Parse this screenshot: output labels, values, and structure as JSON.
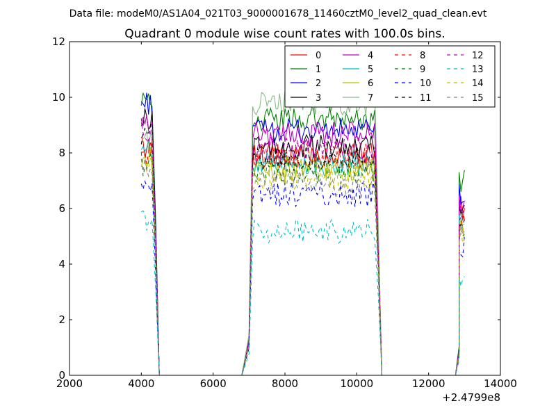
{
  "chart_data": {
    "type": "line",
    "suptitle": "Data file: modeM0/AS1A04_021T03_9000001678_11460cztM0_level2_quad_clean.evt",
    "title": "Quadrant 0 module wise count rates with 100.0s bins.",
    "xlabel": "",
    "ylabel": "",
    "x_offset_label": "+2.4799e8",
    "xlim": [
      2000,
      14000
    ],
    "ylim": [
      0,
      12
    ],
    "xticks": [
      2000,
      4000,
      6000,
      8000,
      10000,
      12000,
      14000
    ],
    "yticks": [
      0,
      2,
      4,
      6,
      8,
      10,
      12
    ],
    "grid": false,
    "legend_position": "top-right",
    "legend_columns": 4,
    "segments": [
      {
        "start": 4000,
        "end": 4300,
        "decay": [
          4400,
          4500
        ]
      },
      {
        "start": 7100,
        "end": 10500,
        "ramp": [
          6800,
          7000
        ],
        "decay": [
          10600,
          10700
        ]
      },
      {
        "start": 12850,
        "end": 13000,
        "ramp": [
          12750,
          12850
        ]
      }
    ],
    "series": [
      {
        "name": "0",
        "color": "#ff0000",
        "dash": "solid",
        "seg_levels": [
          8.2,
          7.9,
          6.0
        ]
      },
      {
        "name": "1",
        "color": "#008000",
        "dash": "solid",
        "seg_levels": [
          10.1,
          9.2,
          7.0
        ]
      },
      {
        "name": "2",
        "color": "#0000ff",
        "dash": "solid",
        "seg_levels": [
          9.8,
          8.8,
          6.5
        ]
      },
      {
        "name": "3",
        "color": "#000000",
        "dash": "solid",
        "seg_levels": [
          9.2,
          8.2,
          5.8
        ]
      },
      {
        "name": "4",
        "color": "#bf00bf",
        "dash": "solid",
        "seg_levels": [
          9.0,
          8.7,
          6.2
        ]
      },
      {
        "name": "5",
        "color": "#00bfbf",
        "dash": "solid",
        "seg_levels": [
          8.0,
          7.6,
          5.5
        ]
      },
      {
        "name": "6",
        "color": "#bfbf00",
        "dash": "solid",
        "seg_levels": [
          7.8,
          7.4,
          5.2
        ]
      },
      {
        "name": "7",
        "color": "#88bb88",
        "dash": "solid",
        "seg_levels": [
          8.5,
          9.8,
          5.6
        ]
      },
      {
        "name": "8",
        "color": "#ff0000",
        "dash": "dashed",
        "seg_levels": [
          8.0,
          7.9,
          5.6
        ]
      },
      {
        "name": "9",
        "color": "#008000",
        "dash": "dashed",
        "seg_levels": [
          7.6,
          7.3,
          5.3
        ]
      },
      {
        "name": "10",
        "color": "#0000ff",
        "dash": "dashed",
        "seg_levels": [
          6.6,
          6.5,
          4.6
        ]
      },
      {
        "name": "11",
        "color": "#000000",
        "dash": "dashed",
        "seg_levels": [
          8.6,
          7.8,
          5.5
        ]
      },
      {
        "name": "12",
        "color": "#bf00bf",
        "dash": "dashed",
        "seg_levels": [
          8.8,
          8.1,
          5.7
        ]
      },
      {
        "name": "13",
        "color": "#00bfbf",
        "dash": "dashed",
        "seg_levels": [
          5.6,
          5.2,
          3.5
        ]
      },
      {
        "name": "14",
        "color": "#bfbf00",
        "dash": "dashed",
        "seg_levels": [
          7.6,
          7.1,
          5.0
        ]
      },
      {
        "name": "15",
        "color": "#808080",
        "dash": "dashed",
        "seg_levels": [
          7.4,
          6.9,
          4.9
        ]
      }
    ]
  }
}
